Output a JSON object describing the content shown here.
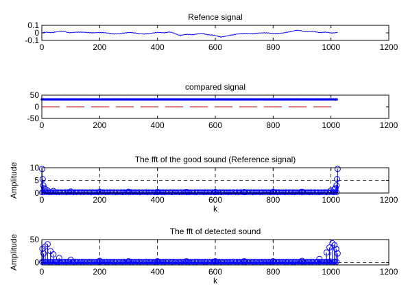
{
  "chart_data": [
    {
      "type": "line",
      "title": "Refence signal",
      "xlabel": "",
      "ylabel": "",
      "xlim": [
        0,
        1200
      ],
      "ylim": [
        -0.1,
        0.1
      ],
      "xticks": [
        "0",
        "200",
        "400",
        "600",
        "800",
        "1000",
        "1200"
      ],
      "yticks": [
        "0.1",
        "0",
        "-0.1"
      ],
      "grid": false,
      "series": [
        {
          "color": "#0000ff",
          "style": "line",
          "x": [
            0,
            40,
            80,
            100,
            150,
            200,
            250,
            300,
            350,
            400,
            440,
            480,
            520,
            560,
            600,
            620,
            650,
            700,
            750,
            800,
            850,
            880,
            920,
            960,
            1000,
            1023
          ],
          "y": [
            0.0,
            0.01,
            0.02,
            0.0,
            0.01,
            0.0,
            -0.01,
            0.0,
            -0.01,
            0.0,
            0.01,
            -0.03,
            -0.02,
            -0.01,
            -0.04,
            -0.05,
            -0.03,
            -0.01,
            0.0,
            -0.01,
            0.01,
            0.03,
            0.02,
            0.01,
            0.0,
            0.01
          ]
        }
      ]
    },
    {
      "type": "line",
      "title": "compared signal",
      "xlabel": "",
      "ylabel": "",
      "xlim": [
        0,
        1200
      ],
      "ylim": [
        -50,
        50
      ],
      "xticks": [
        "0",
        "200",
        "400",
        "600",
        "800",
        "1000",
        "1200"
      ],
      "yticks": [
        "50",
        "0",
        "-50"
      ],
      "grid": false,
      "series": [
        {
          "color": "#0000ff",
          "style": "markers",
          "x": [
            0,
            1023
          ],
          "y": [
            32,
            32
          ]
        },
        {
          "color": "#cc0000",
          "style": "dashed",
          "x": [
            0,
            1023
          ],
          "y": [
            0,
            0
          ]
        }
      ]
    },
    {
      "type": "scatter",
      "title": "The fft of the good sound (Reference signal)",
      "xlabel": "k",
      "ylabel": "Amplitude",
      "xlim": [
        0,
        1200
      ],
      "ylim": [
        0,
        10
      ],
      "xticks": [
        "0",
        "200",
        "400",
        "600",
        "800",
        "1000",
        "1200"
      ],
      "yticks": [
        "10",
        "5",
        "0"
      ],
      "grid": true,
      "series": [
        {
          "color": "#0000ff",
          "style": "stem",
          "x": [
            1,
            3,
            5,
            8,
            12,
            20,
            40,
            100,
            200,
            300,
            400,
            500,
            600,
            700,
            800,
            900,
            1000,
            1012,
            1016,
            1019,
            1021,
            1023
          ],
          "y": [
            9.5,
            5.5,
            3.0,
            2.0,
            1.5,
            1.0,
            0.8,
            0.6,
            0.5,
            0.5,
            0.4,
            0.4,
            0.4,
            0.4,
            0.5,
            0.5,
            1.0,
            1.5,
            2.0,
            3.0,
            5.5,
            9.5
          ]
        }
      ]
    },
    {
      "type": "scatter",
      "title": "The fft of detected sound",
      "xlabel": "k",
      "ylabel": "Amplitude",
      "xlim": [
        0,
        1200
      ],
      "ylim": [
        -5,
        50
      ],
      "xticks": [
        "0",
        "200",
        "400",
        "600",
        "800",
        "1000",
        "1200"
      ],
      "yticks": [
        "50",
        "0"
      ],
      "grid": true,
      "series": [
        {
          "color": "#0000ff",
          "style": "stem",
          "x": [
            2,
            6,
            12,
            20,
            30,
            40,
            60,
            100,
            200,
            300,
            400,
            500,
            600,
            700,
            800,
            900,
            960,
            985,
            995,
            1005,
            1012,
            1018,
            1023
          ],
          "y": [
            30,
            20,
            35,
            40,
            25,
            18,
            10,
            6,
            4,
            3,
            3,
            3,
            3,
            3,
            3,
            4,
            8,
            22,
            33,
            42,
            38,
            30,
            20
          ]
        }
      ]
    }
  ]
}
